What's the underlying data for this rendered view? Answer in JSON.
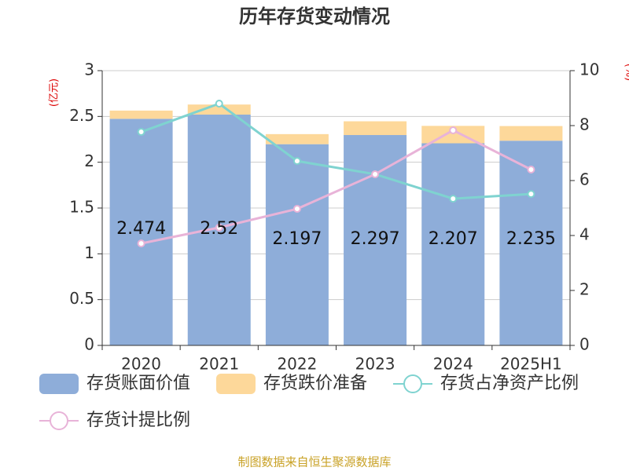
{
  "chart_data": {
    "type": "bar-line",
    "title": "历年存货变动情况",
    "y_label": "(亿元)",
    "y2_label": "(%)",
    "source": "制图数据来自恒生聚源数据库",
    "categories": [
      "2020",
      "2021",
      "2022",
      "2023",
      "2024",
      "2025H1"
    ],
    "series": [
      {
        "name": "存货账面价值",
        "type": "bar",
        "color": "#8eadd9",
        "values": [
          2.474,
          2.52,
          2.197,
          2.297,
          2.207,
          2.235
        ]
      },
      {
        "name": "存货跌价准备",
        "type": "bar",
        "color": "#fdd89a",
        "values": [
          0.09,
          0.11,
          0.11,
          0.15,
          0.19,
          0.16
        ]
      },
      {
        "name": "存货占净资产比例",
        "type": "line",
        "axis": "y2",
        "color": "#7fd3d0",
        "values": [
          7.77,
          8.8,
          6.71,
          6.23,
          5.34,
          5.51
        ]
      },
      {
        "name": "存货计提比例",
        "type": "line",
        "axis": "y2",
        "color": "#e8b3d8",
        "values": [
          3.71,
          4.29,
          4.97,
          6.23,
          7.83,
          6.4
        ]
      }
    ],
    "ylim": [
      0,
      3
    ],
    "yticks": [
      0,
      0.5,
      1,
      1.5,
      2,
      2.5,
      3
    ],
    "y2lim": [
      0,
      10
    ],
    "y2ticks": [
      0,
      2,
      4,
      6,
      8,
      10
    ],
    "grid": true
  }
}
